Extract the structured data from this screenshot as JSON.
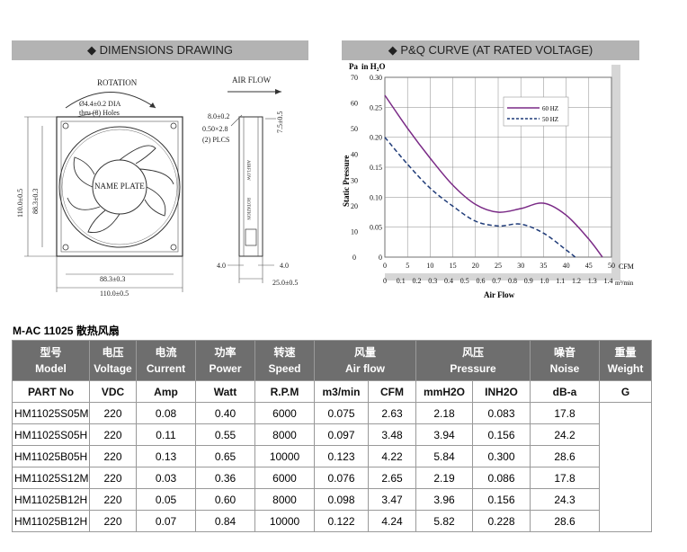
{
  "dimensions": {
    "header": "DIMENSIONS DRAWING",
    "rotation": "ROTATION",
    "airflow": "AIR FLOW",
    "hole_line1": "Ø4.4±0.2 DIA",
    "hole_line2": "thru (8) Holes",
    "name_plate": "NAME PLATE",
    "dim_110": "110.0±0.5",
    "dim_88": "88.3±0.3",
    "dim_8": "8.0±0.2",
    "dim_050": "0.50×2.8",
    "dim_2plcs": "(2) PLCS",
    "dim_75": "7.5±0.5",
    "dim_4a": "4.0",
    "dim_4b": "4.0",
    "dim_25": "25.0±0.5",
    "side_rotation": "ROTATION",
    "side_airflow": "AIRFLOW"
  },
  "pq": {
    "header": "P&Q CURVE (AT RATED VOLTAGE)",
    "y_unit_left": "Pa",
    "y_unit_right": "in H₂O",
    "ylabel": "Static Pressure",
    "xlabel": "Air Flow",
    "cfm_unit": "CFM",
    "m3_unit": "m³/min",
    "pa_ticks": [
      "0",
      "10",
      "20",
      "30",
      "40",
      "50",
      "60",
      "70"
    ],
    "inh2o_ticks": [
      "0",
      "0.05",
      "0.10",
      "0.15",
      "0.20",
      "0.25",
      "0.30"
    ],
    "cfm_ticks": [
      "0",
      "5",
      "10",
      "15",
      "20",
      "25",
      "30",
      "35",
      "40",
      "45",
      "50"
    ],
    "m3_ticks": [
      "0",
      "0.1",
      "0.2",
      "0.3",
      "0.4",
      "0.5",
      "0.6",
      "0.7",
      "0.8",
      "0.9",
      "1.0",
      "1.1",
      "1.2",
      "1.3",
      "1.4"
    ],
    "legend": [
      {
        "label": "60 HZ",
        "color": "#7a2a86"
      },
      {
        "label": "50 HZ",
        "color": "#1f3b78"
      }
    ]
  },
  "chart_data": {
    "type": "line",
    "x_unit": "CFM",
    "y_unit": "in H2O",
    "xlim": [
      0,
      50
    ],
    "ylim": [
      0,
      0.3
    ],
    "series": [
      {
        "name": "60 HZ",
        "x": [
          0,
          5,
          10,
          15,
          20,
          25,
          30,
          35,
          40,
          45,
          48
        ],
        "y": [
          0.27,
          0.215,
          0.165,
          0.12,
          0.088,
          0.075,
          0.081,
          0.09,
          0.07,
          0.03,
          0
        ]
      },
      {
        "name": "50 HZ",
        "x": [
          0,
          5,
          10,
          15,
          20,
          25,
          30,
          35,
          40,
          42
        ],
        "y": [
          0.2,
          0.155,
          0.115,
          0.085,
          0.06,
          0.052,
          0.055,
          0.04,
          0.012,
          0
        ]
      }
    ]
  },
  "table": {
    "title": "M-AC 11025 散热风扇",
    "headers": [
      {
        "cn": "型号",
        "en": "Model"
      },
      {
        "cn": "电压",
        "en": "Voltage"
      },
      {
        "cn": "电流",
        "en": "Current"
      },
      {
        "cn": "功率",
        "en": "Power"
      },
      {
        "cn": "转速",
        "en": "Speed"
      },
      {
        "cn": "风量",
        "en": "Air flow"
      },
      {
        "cn": "风压",
        "en": "Pressure"
      },
      {
        "cn": "噪音",
        "en": "Noise"
      },
      {
        "cn": "重量",
        "en": "Weight"
      }
    ],
    "units": [
      "PART No",
      "VDC",
      "Amp",
      "Watt",
      "R.P.M",
      "m3/min",
      "CFM",
      "mmH2O",
      "INH2O",
      "dB-a",
      "G"
    ],
    "rows": [
      [
        "HM11025S05M",
        "220",
        "0.08",
        "0.40",
        "6000",
        "0.075",
        "2.63",
        "2.18",
        "0.083",
        "17.8"
      ],
      [
        "HM11025S05H",
        "220",
        "0.11",
        "0.55",
        "8000",
        "0.097",
        "3.48",
        "3.94",
        "0.156",
        "24.2"
      ],
      [
        "HM11025B05H",
        "220",
        "0.13",
        "0.65",
        "10000",
        "0.123",
        "4.22",
        "5.84",
        "0.300",
        "28.6"
      ],
      [
        "HM11025S12M",
        "220",
        "0.03",
        "0.36",
        "6000",
        "0.076",
        "2.65",
        "2.19",
        "0.086",
        "17.8"
      ],
      [
        "HM11025B12H",
        "220",
        "0.05",
        "0.60",
        "8000",
        "0.098",
        "3.47",
        "3.96",
        "0.156",
        "24.3"
      ],
      [
        "HM11025B12H",
        "220",
        "0.07",
        "0.84",
        "10000",
        "0.122",
        "4.24",
        "5.82",
        "0.228",
        "28.6"
      ]
    ]
  }
}
